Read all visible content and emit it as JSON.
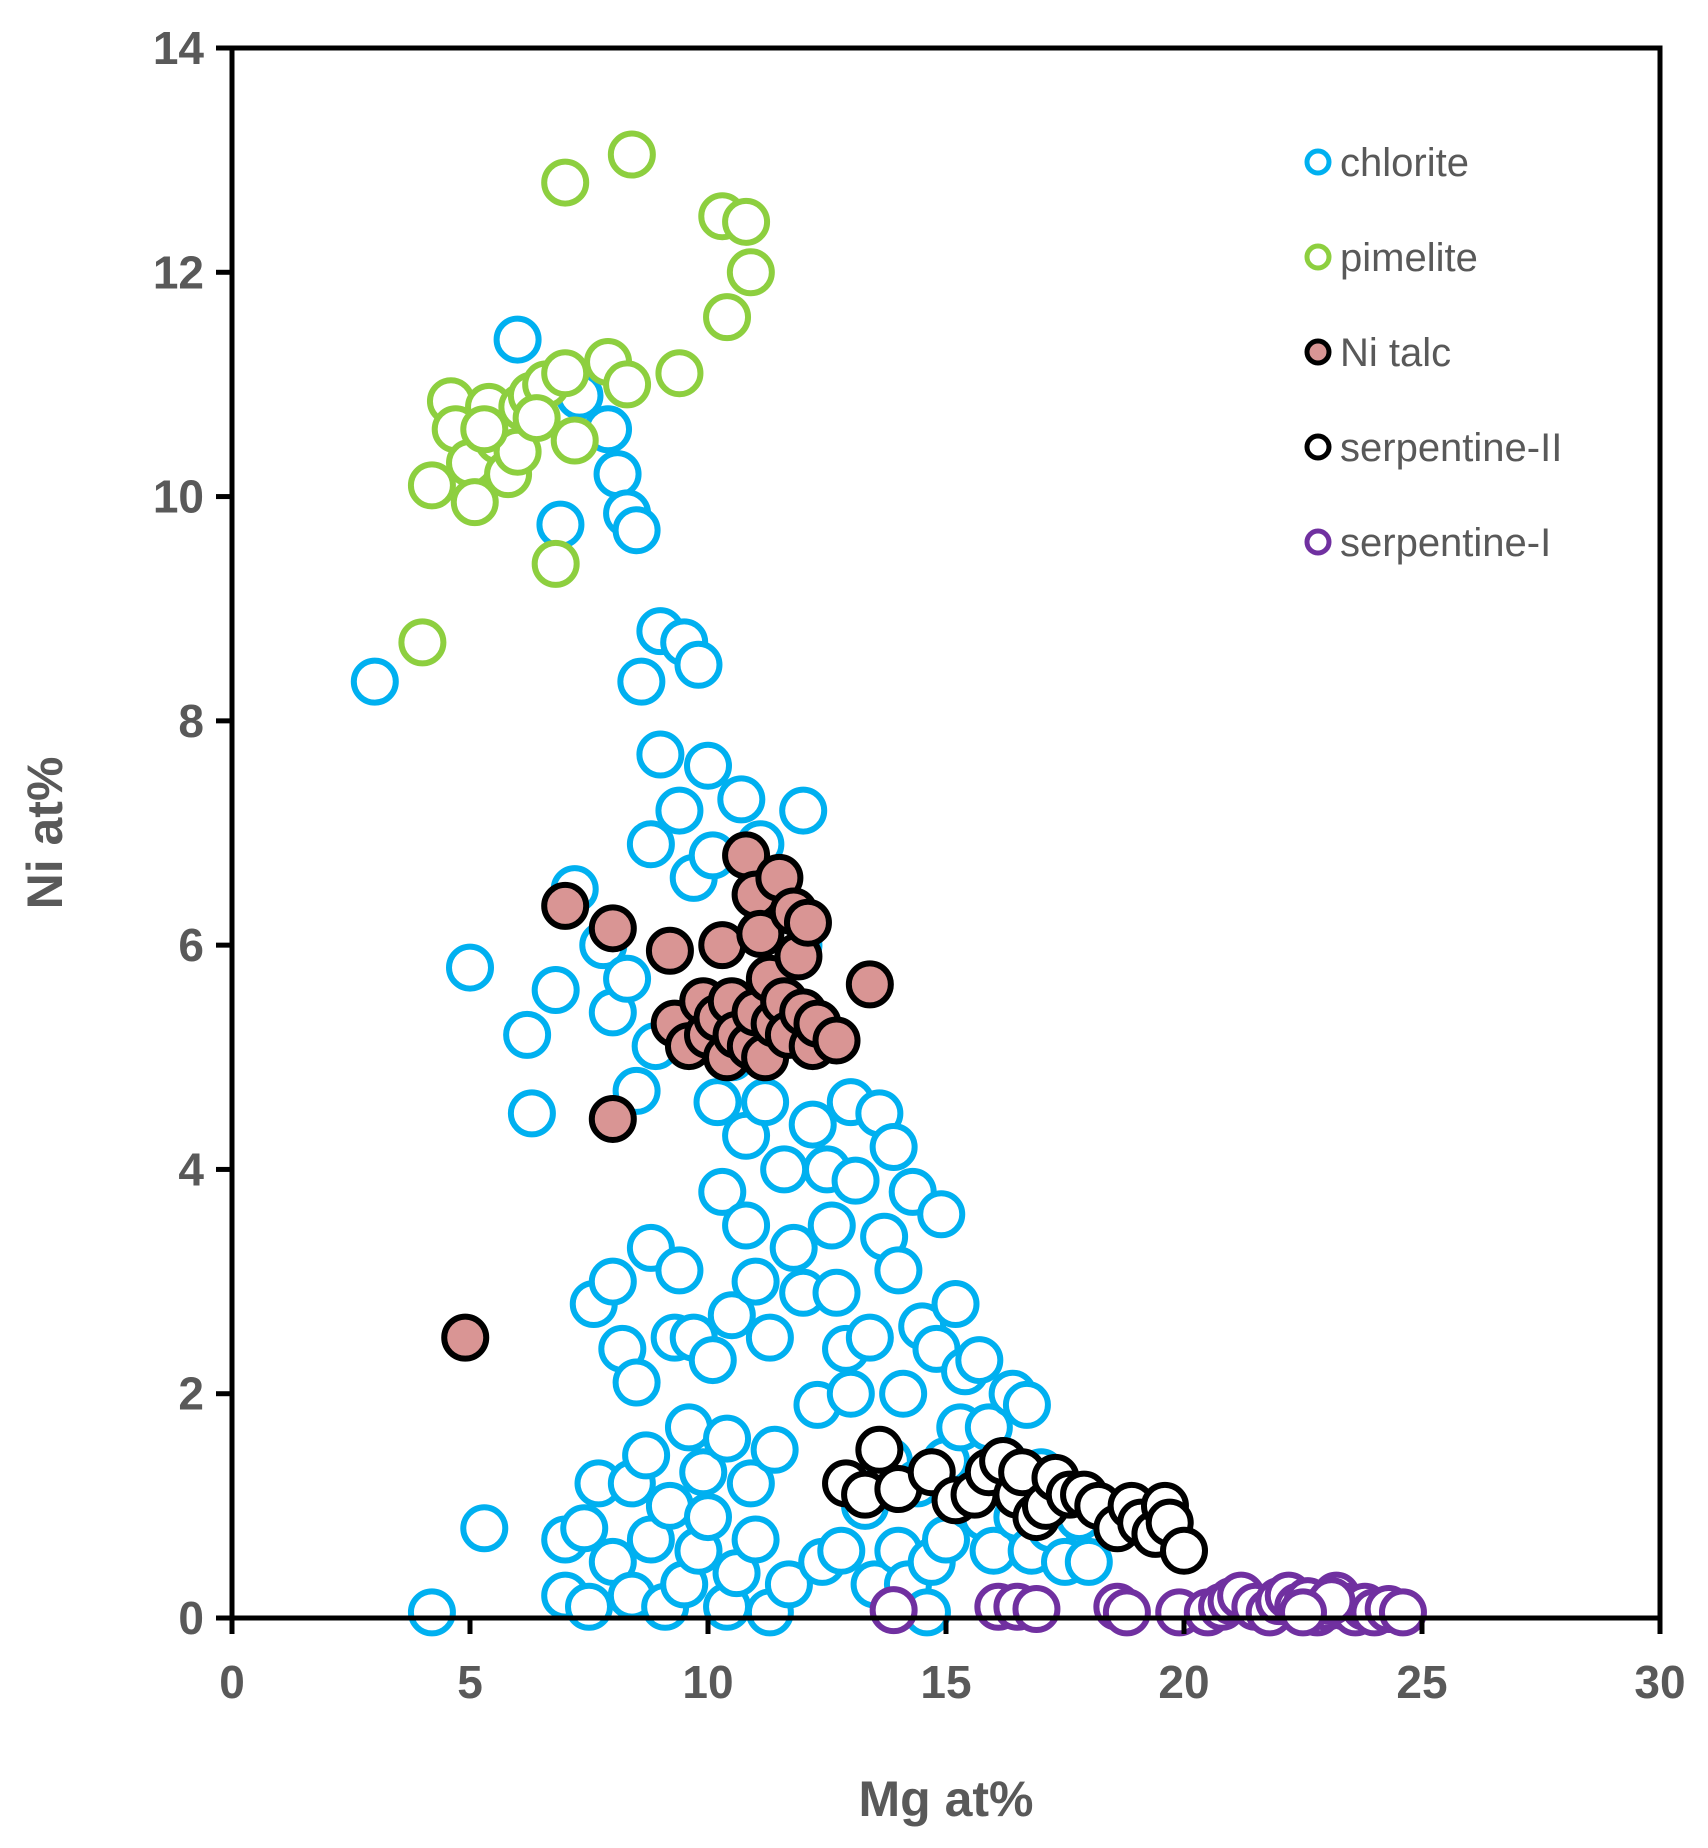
{
  "chart_data": {
    "type": "scatter",
    "title": "",
    "xlabel": "Mg at%",
    "ylabel": "Ni at%",
    "xlim": [
      0,
      30
    ],
    "ylim": [
      0,
      14
    ],
    "xticks": [
      0,
      5,
      10,
      15,
      20,
      25,
      30
    ],
    "yticks": [
      0,
      2,
      4,
      6,
      8,
      10,
      12,
      14
    ],
    "xtick_labels": [
      "0",
      "5",
      "10",
      "15",
      "20",
      "25",
      "30"
    ],
    "ytick_labels": [
      "0",
      "2",
      "4",
      "6",
      "8",
      "10",
      "12",
      "14"
    ],
    "grid": false,
    "legend_position": "top-right",
    "series": [
      {
        "name": "chlorite",
        "stroke": "#00b0f0",
        "fill": "#ffffff",
        "points": [
          [
            3.0,
            8.35
          ],
          [
            4.2,
            0.05
          ],
          [
            5.0,
            5.8
          ],
          [
            5.3,
            0.8
          ],
          [
            6.0,
            11.4
          ],
          [
            6.2,
            5.2
          ],
          [
            6.3,
            4.5
          ],
          [
            6.8,
            5.6
          ],
          [
            6.9,
            9.75
          ],
          [
            7.0,
            0.7
          ],
          [
            7.0,
            0.2
          ],
          [
            7.2,
            6.5
          ],
          [
            7.3,
            10.9
          ],
          [
            7.4,
            0.8
          ],
          [
            7.5,
            0.1
          ],
          [
            7.6,
            2.8
          ],
          [
            7.7,
            1.2
          ],
          [
            7.8,
            6.0
          ],
          [
            7.9,
            10.6
          ],
          [
            8.0,
            0.5
          ],
          [
            8.0,
            3.0
          ],
          [
            8.0,
            5.4
          ],
          [
            8.1,
            10.2
          ],
          [
            8.2,
            2.4
          ],
          [
            8.3,
            5.7
          ],
          [
            8.3,
            9.85
          ],
          [
            8.4,
            0.2
          ],
          [
            8.4,
            1.2
          ],
          [
            8.5,
            2.1
          ],
          [
            8.5,
            4.7
          ],
          [
            8.5,
            9.7
          ],
          [
            8.6,
            8.35
          ],
          [
            8.7,
            1.45
          ],
          [
            8.8,
            0.7
          ],
          [
            8.8,
            3.3
          ],
          [
            8.8,
            6.9
          ],
          [
            8.9,
            5.1
          ],
          [
            9.0,
            8.8
          ],
          [
            9.0,
            7.7
          ],
          [
            9.1,
            0.1
          ],
          [
            9.2,
            1.0
          ],
          [
            9.3,
            2.5
          ],
          [
            9.4,
            3.1
          ],
          [
            9.4,
            7.2
          ],
          [
            9.5,
            8.7
          ],
          [
            9.5,
            0.3
          ],
          [
            9.6,
            1.7
          ],
          [
            9.7,
            6.6
          ],
          [
            9.7,
            2.5
          ],
          [
            9.8,
            8.5
          ],
          [
            9.8,
            0.6
          ],
          [
            9.9,
            1.3
          ],
          [
            10.0,
            7.6
          ],
          [
            10.0,
            0.9
          ],
          [
            10.1,
            2.3
          ],
          [
            10.1,
            6.8
          ],
          [
            10.2,
            4.6
          ],
          [
            10.3,
            3.8
          ],
          [
            10.4,
            1.6
          ],
          [
            10.4,
            0.1
          ],
          [
            10.5,
            5.0
          ],
          [
            10.5,
            2.7
          ],
          [
            10.6,
            0.4
          ],
          [
            10.7,
            7.3
          ],
          [
            10.8,
            4.3
          ],
          [
            10.8,
            3.5
          ],
          [
            10.9,
            1.2
          ],
          [
            11.0,
            0.7
          ],
          [
            11.0,
            3.0
          ],
          [
            11.1,
            6.9
          ],
          [
            11.2,
            4.6
          ],
          [
            11.3,
            2.5
          ],
          [
            11.3,
            0.05
          ],
          [
            11.4,
            1.5
          ],
          [
            11.5,
            6.3
          ],
          [
            11.6,
            4.0
          ],
          [
            11.7,
            0.3
          ],
          [
            11.8,
            3.3
          ],
          [
            11.9,
            6.0
          ],
          [
            12.0,
            7.2
          ],
          [
            12.0,
            5.2
          ],
          [
            12.0,
            2.9
          ],
          [
            12.2,
            4.4
          ],
          [
            12.3,
            1.9
          ],
          [
            12.4,
            0.5
          ],
          [
            12.5,
            4.0
          ],
          [
            12.6,
            3.5
          ],
          [
            12.7,
            2.9
          ],
          [
            12.8,
            0.6
          ],
          [
            12.9,
            2.4
          ],
          [
            13.0,
            4.6
          ],
          [
            13.0,
            2.0
          ],
          [
            13.1,
            3.9
          ],
          [
            13.3,
            1.0
          ],
          [
            13.4,
            2.5
          ],
          [
            13.5,
            0.3
          ],
          [
            13.6,
            4.5
          ],
          [
            13.7,
            3.4
          ],
          [
            13.8,
            1.4
          ],
          [
            13.9,
            4.2
          ],
          [
            14.0,
            3.1
          ],
          [
            14.0,
            0.6
          ],
          [
            14.1,
            2.0
          ],
          [
            14.2,
            0.3
          ],
          [
            14.3,
            3.8
          ],
          [
            14.4,
            1.2
          ],
          [
            14.5,
            2.6
          ],
          [
            14.6,
            0.05
          ],
          [
            14.7,
            0.5
          ],
          [
            14.8,
            2.4
          ],
          [
            14.9,
            3.6
          ],
          [
            15.0,
            1.4
          ],
          [
            15.0,
            0.7
          ],
          [
            15.2,
            2.8
          ],
          [
            15.3,
            1.7
          ],
          [
            15.4,
            2.2
          ],
          [
            15.5,
            1.0
          ],
          [
            15.7,
            2.3
          ],
          [
            15.8,
            0.9
          ],
          [
            15.9,
            1.7
          ],
          [
            16.0,
            0.6
          ],
          [
            16.2,
            1.4
          ],
          [
            16.4,
            2.0
          ],
          [
            16.5,
            0.9
          ],
          [
            16.7,
            1.9
          ],
          [
            16.8,
            0.6
          ],
          [
            17.0,
            1.3
          ],
          [
            17.2,
            0.8
          ],
          [
            17.5,
            0.5
          ],
          [
            17.8,
            0.9
          ],
          [
            18.0,
            0.5
          ]
        ]
      },
      {
        "name": "pimelite",
        "stroke": "#8dcf3f",
        "fill": "#ffffff",
        "points": [
          [
            4.0,
            8.7
          ],
          [
            4.2,
            10.1
          ],
          [
            4.6,
            10.85
          ],
          [
            4.7,
            10.6
          ],
          [
            5.0,
            10.3
          ],
          [
            5.1,
            9.95
          ],
          [
            5.4,
            10.8
          ],
          [
            5.6,
            10.5
          ],
          [
            5.8,
            10.2
          ],
          [
            6.0,
            10.4
          ],
          [
            6.1,
            10.8
          ],
          [
            6.3,
            10.9
          ],
          [
            6.6,
            11.0
          ],
          [
            6.8,
            9.4
          ],
          [
            7.0,
            12.8
          ],
          [
            7.0,
            11.1
          ],
          [
            7.2,
            10.5
          ],
          [
            7.9,
            11.2
          ],
          [
            8.3,
            11.0
          ],
          [
            8.4,
            13.05
          ],
          [
            9.4,
            11.1
          ],
          [
            10.3,
            12.5
          ],
          [
            10.4,
            11.6
          ],
          [
            10.8,
            12.45
          ],
          [
            10.9,
            12.0
          ],
          [
            6.4,
            10.7
          ],
          [
            5.3,
            10.6
          ]
        ]
      },
      {
        "name": "Ni talc",
        "stroke": "#000000",
        "fill": "#d99594",
        "points": [
          [
            4.9,
            2.5
          ],
          [
            7.0,
            6.35
          ],
          [
            8.0,
            6.15
          ],
          [
            8.0,
            4.45
          ],
          [
            9.2,
            5.95
          ],
          [
            9.3,
            5.3
          ],
          [
            9.6,
            5.1
          ],
          [
            9.9,
            5.5
          ],
          [
            10.0,
            5.2
          ],
          [
            10.2,
            5.35
          ],
          [
            10.3,
            6.0
          ],
          [
            10.4,
            5.0
          ],
          [
            10.5,
            5.5
          ],
          [
            10.6,
            5.2
          ],
          [
            10.8,
            6.8
          ],
          [
            10.9,
            5.1
          ],
          [
            11.0,
            6.45
          ],
          [
            11.0,
            5.4
          ],
          [
            11.1,
            6.1
          ],
          [
            11.2,
            5.0
          ],
          [
            11.3,
            5.7
          ],
          [
            11.4,
            5.3
          ],
          [
            11.5,
            6.6
          ],
          [
            11.6,
            5.5
          ],
          [
            11.7,
            5.2
          ],
          [
            11.8,
            6.3
          ],
          [
            11.9,
            5.9
          ],
          [
            12.0,
            5.4
          ],
          [
            12.1,
            6.2
          ],
          [
            12.2,
            5.1
          ],
          [
            12.3,
            5.3
          ],
          [
            12.7,
            5.15
          ],
          [
            13.4,
            5.65
          ]
        ]
      },
      {
        "name": "serpentine-II",
        "stroke": "#000000",
        "fill": "#ffffff",
        "points": [
          [
            12.9,
            1.2
          ],
          [
            13.3,
            1.1
          ],
          [
            13.6,
            1.5
          ],
          [
            14.0,
            1.15
          ],
          [
            14.7,
            1.3
          ],
          [
            15.2,
            1.05
          ],
          [
            15.6,
            1.1
          ],
          [
            15.9,
            1.3
          ],
          [
            16.2,
            1.4
          ],
          [
            16.5,
            1.1
          ],
          [
            16.6,
            1.3
          ],
          [
            16.9,
            0.9
          ],
          [
            17.1,
            1.0
          ],
          [
            17.3,
            1.25
          ],
          [
            17.6,
            1.1
          ],
          [
            17.9,
            1.1
          ],
          [
            18.2,
            1.0
          ],
          [
            18.6,
            0.8
          ],
          [
            18.9,
            1.0
          ],
          [
            19.1,
            0.85
          ],
          [
            19.4,
            0.75
          ],
          [
            19.6,
            1.0
          ],
          [
            19.7,
            0.85
          ],
          [
            20.0,
            0.6
          ]
        ]
      },
      {
        "name": "serpentine-I",
        "stroke": "#7030a0",
        "fill": "#ffffff",
        "points": [
          [
            13.9,
            0.07
          ],
          [
            16.1,
            0.1
          ],
          [
            16.5,
            0.1
          ],
          [
            16.9,
            0.08
          ],
          [
            18.6,
            0.1
          ],
          [
            18.8,
            0.05
          ],
          [
            19.9,
            0.05
          ],
          [
            20.5,
            0.05
          ],
          [
            20.8,
            0.1
          ],
          [
            21.0,
            0.15
          ],
          [
            21.2,
            0.2
          ],
          [
            21.5,
            0.1
          ],
          [
            21.8,
            0.05
          ],
          [
            22.0,
            0.15
          ],
          [
            22.2,
            0.2
          ],
          [
            22.4,
            0.1
          ],
          [
            22.6,
            0.15
          ],
          [
            22.8,
            0.05
          ],
          [
            23.0,
            0.1
          ],
          [
            23.2,
            0.2
          ],
          [
            23.4,
            0.1
          ],
          [
            23.6,
            0.05
          ],
          [
            23.8,
            0.1
          ],
          [
            24.0,
            0.05
          ],
          [
            24.3,
            0.08
          ],
          [
            24.6,
            0.05
          ],
          [
            23.1,
            0.15
          ],
          [
            22.5,
            0.05
          ]
        ]
      }
    ]
  }
}
